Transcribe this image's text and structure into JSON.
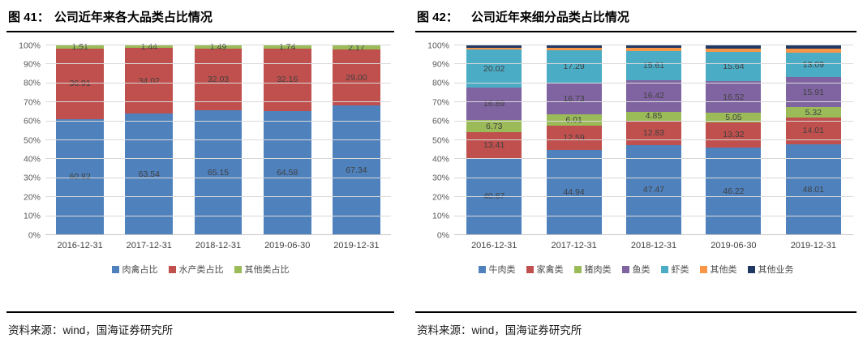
{
  "figures": [
    {
      "title_prefix": "图 41：",
      "title": "公司近年来各大品类占比情况",
      "source": "资料来源：wind，国海证券研究所"
    },
    {
      "title_prefix": "图 42：",
      "title": "公司近年来细分品类占比情况",
      "source": "资料来源：wind，国海证券研究所"
    }
  ],
  "chart_data": [
    {
      "type": "bar",
      "stacked": true,
      "title": "公司近年来各大品类占比情况",
      "categories": [
        "2016-12-31",
        "2017-12-31",
        "2018-12-31",
        "2019-06-30",
        "2019-12-31"
      ],
      "series": [
        {
          "name": "肉禽占比",
          "color": "#4F81BD",
          "values": [
            60.82,
            63.54,
            65.15,
            64.58,
            67.34
          ],
          "value_labels": [
            "60.82",
            "63.54",
            "65.15",
            "64.58",
            "67.34"
          ]
        },
        {
          "name": "水产类占比",
          "color": "#C0504D",
          "values": [
            36.91,
            34.02,
            32.03,
            32.16,
            29.0
          ],
          "value_labels": [
            "36.91",
            "34.02",
            "32.03",
            "32.16",
            "29.00"
          ]
        },
        {
          "name": "其他类占比",
          "color": "#9BBB59",
          "values": [
            1.51,
            1.44,
            1.49,
            1.74,
            2.17
          ],
          "value_labels": [
            "1.51",
            "1.44",
            "1.49",
            "1.74",
            "2.17"
          ]
        }
      ],
      "xlabel": "",
      "ylabel": "",
      "ylim": [
        0,
        100
      ],
      "ytick_step": 10,
      "ytick_suffix": "%",
      "grid": true,
      "legend_position": "bottom"
    },
    {
      "type": "bar",
      "stacked": true,
      "title": "公司近年来细分品类占比情况",
      "categories": [
        "2016-12-31",
        "2017-12-31",
        "2018-12-31",
        "2019-06-30",
        "2019-12-31"
      ],
      "series": [
        {
          "name": "牛肉类",
          "color": "#4F81BD",
          "values": [
            40.67,
            44.94,
            47.47,
            46.22,
            48.01
          ],
          "value_labels": [
            "40.67",
            "44.94",
            "47.47",
            "46.22",
            "48.01"
          ]
        },
        {
          "name": "家禽类",
          "color": "#C0504D",
          "values": [
            13.41,
            12.59,
            12.83,
            13.32,
            14.01
          ],
          "value_labels": [
            "13.41",
            "12.59",
            "12.83",
            "13.32",
            "14.01"
          ]
        },
        {
          "name": "猪肉类",
          "color": "#9BBB59",
          "values": [
            6.73,
            6.01,
            4.85,
            5.05,
            5.32
          ],
          "value_labels": [
            "6.73",
            "6.01",
            "4.85",
            "5.05",
            "5.32"
          ]
        },
        {
          "name": "鱼类",
          "color": "#8064A2",
          "values": [
            16.89,
            16.73,
            16.42,
            16.52,
            15.91
          ],
          "value_labels": [
            "16.89",
            "16.73",
            "16.42",
            "16.52",
            "15.91"
          ]
        },
        {
          "name": "虾类",
          "color": "#4BACC6",
          "values": [
            20.02,
            17.29,
            15.61,
            15.64,
            13.09
          ],
          "value_labels": [
            "20.02",
            "17.29",
            "15.61",
            "15.64",
            "13.09"
          ]
        },
        {
          "name": "其他类",
          "color": "#F79646",
          "values": [
            1.14,
            1.22,
            1.41,
            1.63,
            1.83
          ],
          "estimated": true
        },
        {
          "name": "其他业务",
          "color": "#1F3864",
          "values": [
            1.14,
            1.22,
            1.41,
            1.62,
            1.83
          ],
          "estimated": true
        }
      ],
      "xlabel": "",
      "ylabel": "",
      "ylim": [
        0,
        100
      ],
      "ytick_step": 10,
      "ytick_suffix": "%",
      "grid": true,
      "legend_position": "bottom"
    }
  ]
}
